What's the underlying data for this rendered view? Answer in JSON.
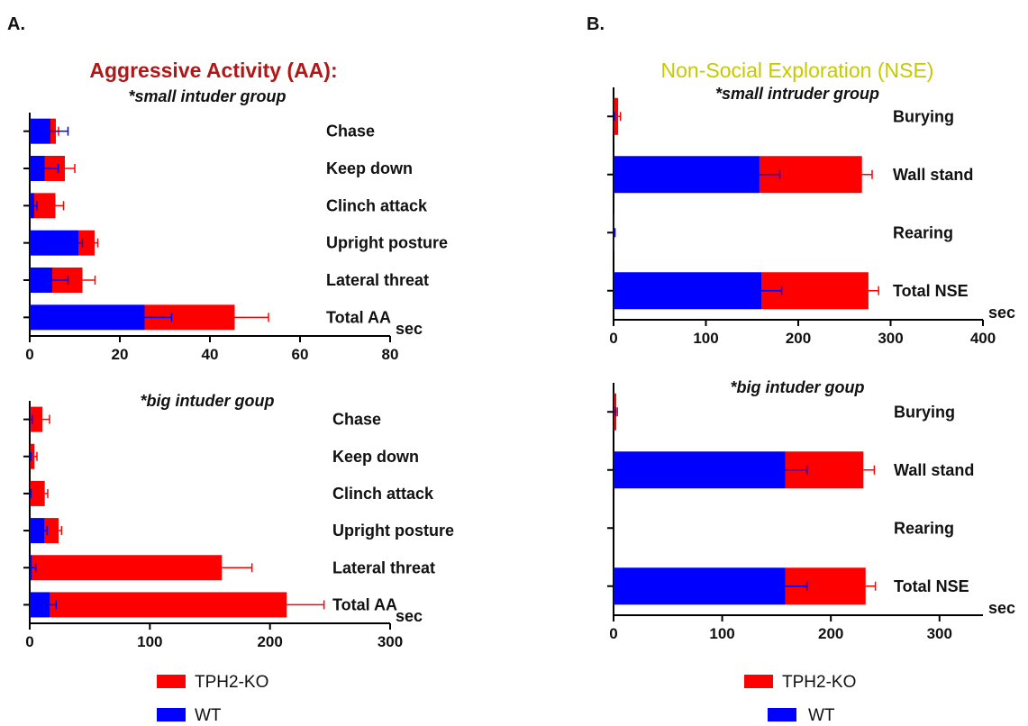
{
  "colors": {
    "tph2_ko": "#ff0000",
    "wt": "#0000ff",
    "title_a": "#b01818",
    "title_b": "#c8c800",
    "axis": "#000000"
  },
  "panel_a": {
    "letter": "A.",
    "title": "Aggressive Activity (AA):",
    "subtitle_top": "*small intuder group",
    "subtitle_bottom": "*big intuder goup",
    "legend": [
      {
        "label": "TPH2-KO",
        "color": "#ff0000"
      },
      {
        "label": "WT",
        "color": "#0000ff"
      }
    ]
  },
  "panel_b": {
    "letter": "B.",
    "title": "Non-Social Exploration (NSE)",
    "subtitle_top": "*small intruder group",
    "subtitle_bottom": "*big intuder goup",
    "legend": [
      {
        "label": "TPH2-KO",
        "color": "#ff0000"
      },
      {
        "label": "WT",
        "color": "#0000ff"
      }
    ]
  },
  "chart_data": [
    {
      "id": "a_small",
      "type": "bar",
      "stacked": true,
      "orientation": "horizontal",
      "categories": [
        "Chase",
        "Keep down",
        "Clinch attack",
        "Upright posture",
        "Lateral threat",
        "Total AA"
      ],
      "series": [
        {
          "name": "WT",
          "values": [
            4.6,
            3.3,
            1.0,
            10.8,
            5.0,
            25.5
          ],
          "errors": [
            3.9,
            3.0,
            0.6,
            0.9,
            3.5,
            6.0
          ]
        },
        {
          "name": "TPH2-KO",
          "values": [
            1.2,
            4.5,
            4.7,
            3.6,
            6.7,
            20.0
          ],
          "errors": [
            0.6,
            2.2,
            1.8,
            0.7,
            2.8,
            7.5
          ]
        }
      ],
      "xlim": [
        0,
        80
      ],
      "xticks": [
        "0",
        "20",
        "40",
        "60",
        "80"
      ],
      "xlabel": "sec"
    },
    {
      "id": "a_big",
      "type": "bar",
      "stacked": true,
      "orientation": "horizontal",
      "categories": [
        "Chase",
        "Keep down",
        "Clinch attack",
        "Upright posture",
        "Lateral threat",
        "Total AA"
      ],
      "series": [
        {
          "name": "WT",
          "values": [
            1.0,
            0.5,
            0.5,
            12.5,
            2.0,
            17.0
          ],
          "errors": [
            1.0,
            0.5,
            0.5,
            2.0,
            3.0,
            5.0
          ]
        },
        {
          "name": "TPH2-KO",
          "values": [
            9.5,
            3.5,
            12.0,
            11.5,
            158.0,
            197.0
          ],
          "errors": [
            6.0,
            2.0,
            2.5,
            2.5,
            25.0,
            31.0
          ]
        }
      ],
      "xlim": [
        0,
        300
      ],
      "xticks": [
        "0",
        "100",
        "200",
        "300"
      ],
      "xlabel": "sec"
    },
    {
      "id": "b_small",
      "type": "bar",
      "stacked": true,
      "orientation": "horizontal",
      "categories": [
        "Burying",
        "Wall stand",
        "Rearing",
        "Total NSE"
      ],
      "series": [
        {
          "name": "WT",
          "values": [
            0.5,
            158.0,
            1.0,
            160.0
          ],
          "errors": [
            0.5,
            22.0,
            0.5,
            22.0
          ]
        },
        {
          "name": "TPH2-KO",
          "values": [
            4.5,
            111.0,
            0,
            116.0
          ],
          "errors": [
            2.5,
            11.0,
            0,
            11.0
          ]
        }
      ],
      "xlim": [
        0,
        400
      ],
      "xticks": [
        "0",
        "100",
        "200",
        "300",
        "400"
      ],
      "xlabel": "sec"
    },
    {
      "id": "b_big",
      "type": "bar",
      "stacked": true,
      "orientation": "horizontal",
      "categories": [
        "Burying",
        "Wall stand",
        "Rearing",
        "Total NSE"
      ],
      "series": [
        {
          "name": "WT",
          "values": [
            0.5,
            158.0,
            0,
            158.0
          ],
          "errors": [
            1.5,
            20.0,
            0,
            20.0
          ]
        },
        {
          "name": "TPH2-KO",
          "values": [
            2.0,
            72.0,
            0,
            74.0
          ],
          "errors": [
            1.0,
            10.0,
            0,
            9.0
          ]
        }
      ],
      "xlim": [
        0,
        340
      ],
      "xticks": [
        "0",
        "100",
        "200",
        "300"
      ],
      "xlabel": "sec"
    }
  ]
}
